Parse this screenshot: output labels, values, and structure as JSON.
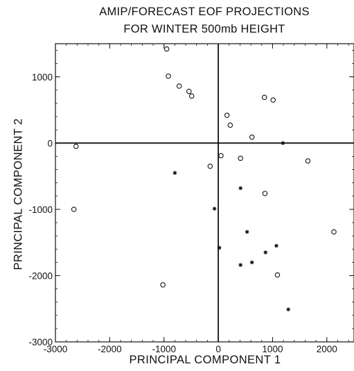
{
  "chart_data": {
    "type": "scatter",
    "title": "AMIP/FORECAST EOF PROJECTIONS",
    "subtitle": "FOR WINTER 500mb HEIGHT",
    "xlabel": "PRINCIPAL COMPONENT 1",
    "ylabel": "PRINCIPAL COMPONENT 2",
    "xlim": [
      -3000,
      2500
    ],
    "ylim": [
      -3000,
      1500
    ],
    "xticks": [
      -3000,
      -2000,
      -1000,
      0,
      1000,
      2000
    ],
    "yticks": [
      -3000,
      -2000,
      -1000,
      0,
      1000
    ],
    "grid": false,
    "zero_lines": true,
    "series": [
      {
        "marker": "circle",
        "points": [
          {
            "x": -950,
            "y": 1420
          },
          {
            "x": -920,
            "y": 1010
          },
          {
            "x": -720,
            "y": 860
          },
          {
            "x": -540,
            "y": 780
          },
          {
            "x": -490,
            "y": 710
          },
          {
            "x": 160,
            "y": 420
          },
          {
            "x": 220,
            "y": 270
          },
          {
            "x": 850,
            "y": 690
          },
          {
            "x": 1010,
            "y": 650
          },
          {
            "x": 620,
            "y": 90
          },
          {
            "x": -2620,
            "y": -50
          },
          {
            "x": 50,
            "y": -190
          },
          {
            "x": 410,
            "y": -230
          },
          {
            "x": 1650,
            "y": -270
          },
          {
            "x": -150,
            "y": -350
          },
          {
            "x": 860,
            "y": -760
          },
          {
            "x": -2660,
            "y": -1000
          },
          {
            "x": 2130,
            "y": -1340
          },
          {
            "x": 1090,
            "y": -1990
          },
          {
            "x": -1020,
            "y": -2140
          }
        ]
      },
      {
        "marker": "asterisk",
        "points": [
          {
            "x": 1190,
            "y": 0
          },
          {
            "x": -800,
            "y": -450
          },
          {
            "x": 410,
            "y": -680
          },
          {
            "x": -70,
            "y": -990
          },
          {
            "x": 530,
            "y": -1340
          },
          {
            "x": 1070,
            "y": -1550
          },
          {
            "x": 20,
            "y": -1580
          },
          {
            "x": 870,
            "y": -1650
          },
          {
            "x": 620,
            "y": -1800
          },
          {
            "x": 410,
            "y": -1840
          },
          {
            "x": 1290,
            "y": -2510
          }
        ]
      }
    ]
  }
}
